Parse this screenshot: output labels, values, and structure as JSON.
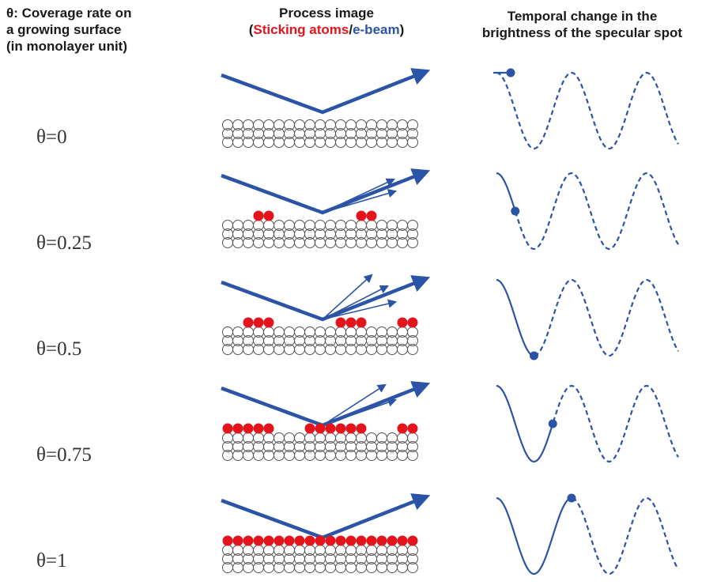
{
  "headers": {
    "coverage_line1": "θ: Coverage rate on",
    "coverage_line2": "a growing surface",
    "coverage_line3": "(in monolayer unit)",
    "process_title": "Process image",
    "process_open": "(",
    "process_sticking": "Sticking atoms",
    "process_slash": "/",
    "process_ebeam": "e-beam",
    "process_close": ")",
    "temporal_line1": "Temporal change in the",
    "temporal_line2": "brightness of the specular spot"
  },
  "rows": [
    {
      "label": "θ=0",
      "coverage": 0
    },
    {
      "label": "θ=0.25",
      "coverage": 0.25
    },
    {
      "label": "θ=0.5",
      "coverage": 0.5
    },
    {
      "label": "θ=0.75",
      "coverage": 0.75
    },
    {
      "label": "θ=1",
      "coverage": 1
    }
  ],
  "colors": {
    "atom_red": "#e3141b",
    "beam_blue": "#2b54a6",
    "substrate_stroke": "#555555"
  }
}
